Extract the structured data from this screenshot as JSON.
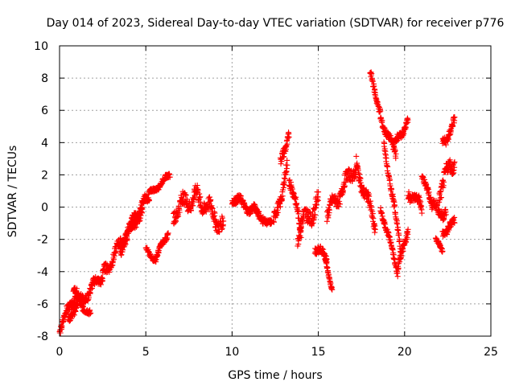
{
  "chart_data": {
    "type": "scatter",
    "title": "Day 014 of 2023, Sidereal Day-to-day VTEC variation (SDTVAR) for receiver p776",
    "xlabel": "GPS time / hours",
    "ylabel": "SDTVAR / TECUs",
    "xlim": [
      0,
      25
    ],
    "ylim": [
      -8,
      10
    ],
    "x_ticks": [
      "0",
      "5",
      "10",
      "15",
      "20",
      "25"
    ],
    "y_ticks": [
      "-8",
      "-6",
      "-4",
      "-2",
      "0",
      "2",
      "4",
      "6",
      "8",
      "10"
    ],
    "grid": true,
    "marker": "plus",
    "series": [
      {
        "name": "SDTVAR",
        "color": "#ff0000",
        "tracks": [
          {
            "t0": 0.0,
            "t1": 1.0,
            "y0": -7.6,
            "y1": -5.2,
            "jitter": 0.45
          },
          {
            "t0": 0.8,
            "t1": 1.8,
            "y0": -5.2,
            "y1": -6.8,
            "jitter": 0.35
          },
          {
            "t0": 0.5,
            "t1": 2.5,
            "y0": -6.8,
            "y1": -4.2,
            "jitter": 0.5
          },
          {
            "t0": 2.5,
            "t1": 4.8,
            "y0": -4.2,
            "y1": 0.0,
            "jitter": 0.55
          },
          {
            "t0": 3.5,
            "t1": 5.2,
            "y0": -2.6,
            "y1": 0.8,
            "jitter": 0.5
          },
          {
            "t0": 5.0,
            "t1": 5.6,
            "y0": -2.5,
            "y1": -3.4,
            "jitter": 0.25
          },
          {
            "t0": 5.6,
            "t1": 6.3,
            "y0": -3.2,
            "y1": -1.5,
            "jitter": 0.3
          },
          {
            "t0": 5.2,
            "t1": 6.4,
            "y0": 0.8,
            "y1": 2.0,
            "jitter": 0.25
          },
          {
            "t0": 6.6,
            "t1": 8.0,
            "y0": -0.3,
            "y1": 0.8,
            "jitter": 0.8
          },
          {
            "t0": 8.0,
            "t1": 9.5,
            "y0": 0.7,
            "y1": -1.2,
            "jitter": 0.8
          },
          {
            "t0": 10.0,
            "t1": 11.8,
            "y0": 0.6,
            "y1": -0.6,
            "jitter": 0.45
          },
          {
            "t0": 11.8,
            "t1": 12.3,
            "y0": -0.6,
            "y1": -1.1,
            "jitter": 0.3
          },
          {
            "t0": 12.4,
            "t1": 13.2,
            "y0": -1.2,
            "y1": 2.5,
            "jitter": 0.7
          },
          {
            "t0": 12.8,
            "t1": 13.3,
            "y0": 2.5,
            "y1": 4.8,
            "jitter": 0.6
          },
          {
            "t0": 13.3,
            "t1": 14.0,
            "y0": 2.0,
            "y1": -1.5,
            "jitter": 0.6
          },
          {
            "t0": 13.8,
            "t1": 15.0,
            "y0": -1.5,
            "y1": 0.3,
            "jitter": 0.9
          },
          {
            "t0": 14.8,
            "t1": 15.5,
            "y0": -2.5,
            "y1": -3.2,
            "jitter": 0.4
          },
          {
            "t0": 15.4,
            "t1": 15.8,
            "y0": -3.3,
            "y1": -5.0,
            "jitter": 0.25
          },
          {
            "t0": 15.5,
            "t1": 17.2,
            "y0": -0.5,
            "y1": 2.6,
            "jitter": 0.7
          },
          {
            "t0": 17.2,
            "t1": 18.3,
            "y0": 2.6,
            "y1": -1.2,
            "jitter": 0.7
          },
          {
            "t0": 18.0,
            "t1": 18.6,
            "y0": 8.2,
            "y1": 6.0,
            "jitter": 0.4
          },
          {
            "t0": 18.6,
            "t1": 19.5,
            "y0": 5.6,
            "y1": 3.2,
            "jitter": 0.4
          },
          {
            "t0": 19.4,
            "t1": 20.2,
            "y0": 3.8,
            "y1": 5.4,
            "jitter": 0.4
          },
          {
            "t0": 18.6,
            "t1": 19.6,
            "y0": 0.0,
            "y1": -4.0,
            "jitter": 0.35
          },
          {
            "t0": 19.6,
            "t1": 20.2,
            "y0": -4.0,
            "y1": -1.2,
            "jitter": 0.45
          },
          {
            "t0": 18.8,
            "t1": 19.8,
            "y0": 4.0,
            "y1": -2.8,
            "jitter": 0.4
          },
          {
            "t0": 20.2,
            "t1": 21.0,
            "y0": 1.0,
            "y1": 0.0,
            "jitter": 0.55
          },
          {
            "t0": 21.0,
            "t1": 21.6,
            "y0": 2.2,
            "y1": -0.2,
            "jitter": 0.5
          },
          {
            "t0": 21.6,
            "t1": 22.4,
            "y0": 0.0,
            "y1": -0.3,
            "jitter": 0.6
          },
          {
            "t0": 21.8,
            "t1": 22.2,
            "y0": -2.0,
            "y1": -2.8,
            "jitter": 0.25
          },
          {
            "t0": 22.2,
            "t1": 22.9,
            "y0": 4.0,
            "y1": 5.2,
            "jitter": 0.5
          },
          {
            "t0": 22.0,
            "t1": 22.9,
            "y0": 1.0,
            "y1": 3.0,
            "jitter": 0.8
          },
          {
            "t0": 22.2,
            "t1": 22.9,
            "y0": -1.5,
            "y1": -1.0,
            "jitter": 0.45
          }
        ]
      }
    ]
  }
}
